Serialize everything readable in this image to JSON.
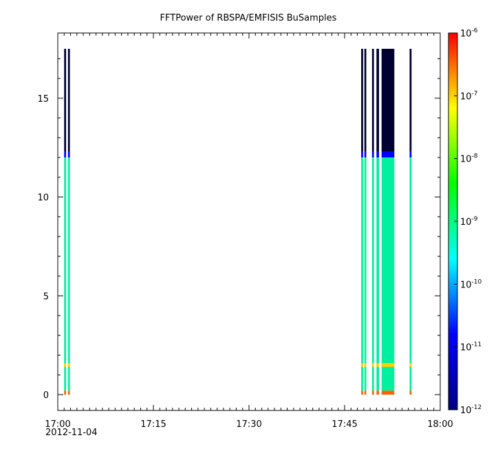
{
  "chart_data": {
    "type": "heatmap",
    "title": "FFTPower of RBSPA/EMFISIS  BuSamples",
    "date_label": "2012-11-04",
    "x_axis": {
      "range": [
        "17:00",
        "18:00"
      ],
      "ticks": [
        "17:00",
        "17:15",
        "17:30",
        "17:45",
        "18:00"
      ],
      "minor_tick_minutes": 1
    },
    "y_axis": {
      "range": [
        -0.8,
        18.3
      ],
      "ticks": [
        0,
        5,
        10,
        15
      ],
      "tick_labels": [
        "0",
        "5",
        "10",
        "15"
      ]
    },
    "colorbar": {
      "scale": "log",
      "range": [
        1e-12,
        1e-06
      ],
      "tick_bases": [
        "10",
        "10",
        "10",
        "10",
        "10",
        "10",
        "10"
      ],
      "tick_exponents": [
        "-12",
        "-11",
        "-10",
        "-9",
        "-8",
        "-7",
        "-6"
      ],
      "colormap": [
        "#000080",
        "#0000ff",
        "#00ffff",
        "#00ff00",
        "#ffff00",
        "#ff0000"
      ]
    },
    "bursts": [
      {
        "start": "17:01.0",
        "end": "17:01.3",
        "kind": "single"
      },
      {
        "start": "17:01.6",
        "end": "17:01.9",
        "kind": "single"
      },
      {
        "start": "17:47.6",
        "end": "17:47.9",
        "kind": "single"
      },
      {
        "start": "17:48.1",
        "end": "17:48.4",
        "kind": "single"
      },
      {
        "start": "17:49.3",
        "end": "17:49.6",
        "kind": "single"
      },
      {
        "start": "17:50.0",
        "end": "17:50.4",
        "kind": "single"
      },
      {
        "start": "17:50.8",
        "end": "17:52.8",
        "kind": "continuous"
      },
      {
        "start": "17:55.2",
        "end": "17:55.5",
        "kind": "single"
      }
    ],
    "spectrum_levels": [
      {
        "y_from": 12.3,
        "y_to": 17.5,
        "level": "1e-12",
        "color": "#000033"
      },
      {
        "y_from": 12.0,
        "y_to": 12.3,
        "level": "3e-12",
        "color": "#0000ff"
      },
      {
        "y_from": 0.2,
        "y_to": 12.0,
        "level": "1e-10",
        "color": "#00f0a0"
      },
      {
        "y_from": 1.4,
        "y_to": 1.6,
        "level": "1e-8",
        "color": "#ffd000"
      },
      {
        "y_from": 0.0,
        "y_to": 0.2,
        "level": "1e-7",
        "color": "#ff6000"
      }
    ]
  }
}
